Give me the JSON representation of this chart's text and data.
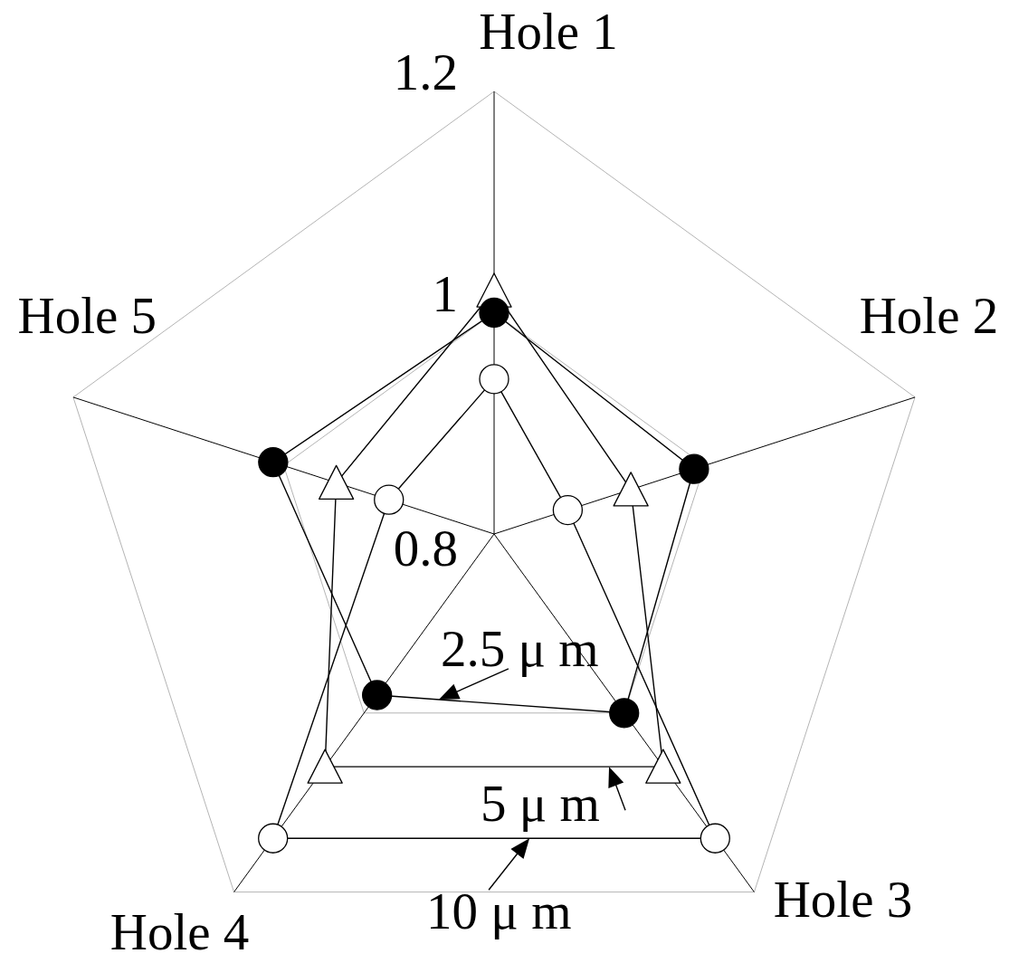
{
  "chart_data": {
    "type": "radar",
    "categories": [
      "Hole 1",
      "Hole 2",
      "Hole 3",
      "Hole 4",
      "Hole 5"
    ],
    "ylim": [
      0.8,
      1.2
    ],
    "yticks": [
      0.8,
      1,
      1.2
    ],
    "grid": true,
    "series": [
      {
        "name": "2.5 μ m",
        "color": "#000000",
        "marker": "circle",
        "values": [
          1.0,
          0.99,
          1.0,
          0.98,
          1.01
        ]
      },
      {
        "name": "5 μ m",
        "color": "#000000",
        "marker": "triangle",
        "colors": [
          "#ffffff",
          "#ffffff",
          "#ffffff",
          "#ffffff",
          "#ffffff"
        ],
        "values": [
          1.02,
          0.93,
          1.06,
          1.06,
          0.95
        ]
      },
      {
        "name": "10 μ m",
        "color": "#000000",
        "marker": "circle",
        "colors": [
          "#ffffff",
          "#ffffff",
          "#ffffff",
          "#ffffff",
          "#ffffff"
        ],
        "values": [
          0.94,
          0.87,
          1.14,
          1.14,
          0.9
        ]
      }
    ]
  }
}
